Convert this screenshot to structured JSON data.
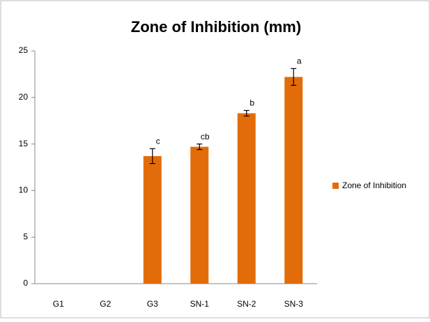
{
  "chart_data": {
    "type": "bar",
    "title": "Zone of Inhibition (mm)",
    "categories": [
      "G1",
      "G2",
      "G3",
      "SN-1",
      "SN-2",
      "SN-3"
    ],
    "series": [
      {
        "name": "Zone of Inhibition",
        "color": "#e36c0a",
        "values": [
          0,
          0,
          13.7,
          14.7,
          18.3,
          22.2
        ],
        "errors": [
          null,
          null,
          0.8,
          0.3,
          0.3,
          0.9
        ]
      }
    ],
    "annotations": [
      null,
      null,
      "c",
      "cb",
      "b",
      "a"
    ],
    "ylim": [
      0,
      25
    ],
    "yticks": [
      0,
      5,
      10,
      15,
      20,
      25
    ],
    "grid": false,
    "legend": "right"
  }
}
